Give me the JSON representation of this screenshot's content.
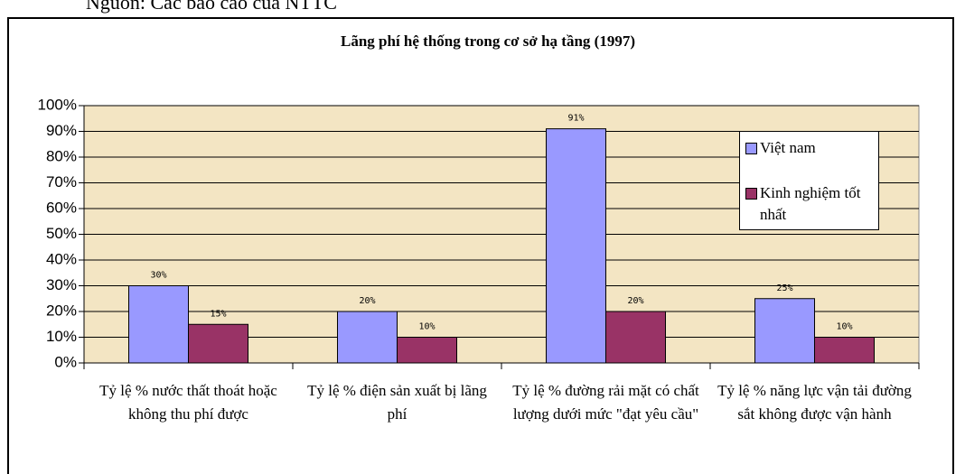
{
  "source_note": "Nguồn: Các báo cáo của NTTC",
  "chart_data": {
    "type": "bar",
    "title": "Lãng phí hệ thống trong cơ sở hạ tầng (1997)",
    "categories": [
      "Tỷ lệ % nước thất thoát hoặc không thu phí được",
      "Tỷ lệ % điện sản xuất bị lãng phí",
      "Tỷ lệ % đường rải mặt có chất lượng dưới mức \"đạt yêu cầu\"",
      "Tỷ lệ % năng lực vận tải đường sắt không được vận hành"
    ],
    "series": [
      {
        "name": "Việt nam",
        "color": "#9999ff",
        "values": [
          30,
          20,
          91,
          25
        ],
        "value_labels": [
          "30%",
          "20%",
          "91%",
          "25%"
        ]
      },
      {
        "name": "Kinh nghiệm tốt nhất",
        "color": "#993366",
        "values": [
          15,
          10,
          20,
          10
        ],
        "value_labels": [
          "15%",
          "10%",
          "20%",
          "10%"
        ]
      }
    ],
    "ylim": [
      0,
      100
    ],
    "yticks": [
      {
        "value": 0,
        "label": "0%"
      },
      {
        "value": 10,
        "label": "10%"
      },
      {
        "value": 20,
        "label": "20%"
      },
      {
        "value": 30,
        "label": "30%"
      },
      {
        "value": 40,
        "label": "40%"
      },
      {
        "value": 50,
        "label": "50%"
      },
      {
        "value": 60,
        "label": "60%"
      },
      {
        "value": 70,
        "label": "70%"
      },
      {
        "value": 80,
        "label": "80%"
      },
      {
        "value": 90,
        "label": "90%"
      },
      {
        "value": 100,
        "label": "100%"
      }
    ],
    "grid": true,
    "plot_background": "#f3e5c3",
    "legend": "right"
  }
}
